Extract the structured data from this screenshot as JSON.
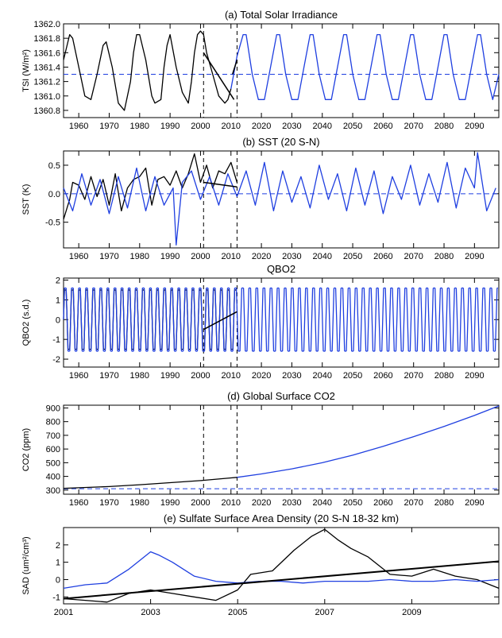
{
  "figure": {
    "panels": [
      "tsi",
      "sst",
      "qbo",
      "co2",
      "sad"
    ]
  },
  "chart_data": [
    {
      "id": "tsi",
      "type": "line",
      "title": "(a) Total Solar Irradiance",
      "ylabel": "TSI (W/m²)",
      "xlim": [
        1955,
        2098
      ],
      "ylim": [
        1360.7,
        1362.0
      ],
      "yticks": [
        1360.8,
        1361.0,
        1361.2,
        1361.4,
        1361.6,
        1361.8,
        1362.0
      ],
      "ytick_labels": [
        "1360.8",
        "1361.0",
        "1361.2",
        "1361.4",
        "1361.6",
        "1361.8",
        "1362.0"
      ],
      "xticks": [
        1960,
        1970,
        1980,
        1990,
        2000,
        2010,
        2020,
        2030,
        2040,
        2050,
        2060,
        2070,
        2080,
        2090
      ],
      "xtick_labels": [
        "1960",
        "1970",
        "1980",
        "1990",
        "2000",
        "2010",
        "2020",
        "2030",
        "2040",
        "2050",
        "2060",
        "2070",
        "2080",
        "2090"
      ],
      "vlines": [
        2001,
        2012
      ],
      "hline": 1361.3,
      "series": [
        {
          "color": "#000000",
          "x": [
            1955,
            1957,
            1958,
            1960,
            1962,
            1964,
            1966,
            1968,
            1969,
            1971,
            1973,
            1975,
            1977,
            1978,
            1979,
            1980,
            1982,
            1984,
            1985,
            1987,
            1988,
            1989,
            1990,
            1992,
            1994,
            1996,
            1997,
            1998,
            1999,
            2000,
            2001,
            2002,
            2004,
            2006,
            2008,
            2009,
            2010
          ],
          "y": [
            1361.5,
            1361.85,
            1361.8,
            1361.4,
            1361.0,
            1360.95,
            1361.3,
            1361.7,
            1361.75,
            1361.4,
            1360.9,
            1360.8,
            1361.2,
            1361.6,
            1361.85,
            1361.85,
            1361.5,
            1361.0,
            1360.9,
            1360.95,
            1361.4,
            1361.7,
            1361.85,
            1361.4,
            1361.05,
            1360.9,
            1361.2,
            1361.6,
            1361.85,
            1361.9,
            1361.85,
            1361.6,
            1361.3,
            1361.0,
            1360.9,
            1360.95,
            1361.1
          ]
        },
        {
          "color": "#1f3fe0",
          "x": [
            2010,
            2012,
            2014,
            2015,
            2017,
            2019,
            2021,
            2023,
            2025,
            2026,
            2028,
            2030,
            2032,
            2034,
            2036,
            2037,
            2039,
            2041,
            2043,
            2045,
            2047,
            2048,
            2050,
            2052,
            2054,
            2056,
            2058,
            2059,
            2061,
            2063,
            2065,
            2067,
            2069,
            2070,
            2072,
            2074,
            2076,
            2078,
            2080,
            2081,
            2083,
            2085,
            2087,
            2089,
            2091,
            2092,
            2094,
            2096,
            2098
          ],
          "y": [
            1361.1,
            1361.55,
            1361.85,
            1361.85,
            1361.3,
            1360.95,
            1360.95,
            1361.4,
            1361.85,
            1361.85,
            1361.3,
            1360.95,
            1360.95,
            1361.4,
            1361.85,
            1361.85,
            1361.3,
            1360.95,
            1360.95,
            1361.4,
            1361.85,
            1361.85,
            1361.3,
            1360.95,
            1360.95,
            1361.4,
            1361.85,
            1361.85,
            1361.3,
            1360.95,
            1360.95,
            1361.4,
            1361.85,
            1361.85,
            1361.3,
            1360.95,
            1360.95,
            1361.4,
            1361.85,
            1361.85,
            1361.3,
            1360.95,
            1360.95,
            1361.4,
            1361.85,
            1361.85,
            1361.3,
            1360.95,
            1361.3
          ]
        }
      ],
      "trend": {
        "x": [
          2001,
          2011
        ],
        "y": [
          1361.6,
          1360.95
        ]
      },
      "trend2": {
        "x": [
          2010.5,
          2012
        ],
        "y": [
          1361.3,
          1361.5
        ]
      }
    },
    {
      "id": "sst",
      "type": "line",
      "title": "(b)  SST (20 S-N)",
      "ylabel": "SST (K)",
      "xlim": [
        1955,
        2098
      ],
      "ylim": [
        -0.95,
        0.75
      ],
      "yticks": [
        -0.5,
        0.0,
        0.5
      ],
      "ytick_labels": [
        "-0.5",
        "0.0",
        "0.5"
      ],
      "xticks": [
        1960,
        1970,
        1980,
        1990,
        2000,
        2010,
        2020,
        2030,
        2040,
        2050,
        2060,
        2070,
        2080,
        2090
      ],
      "xtick_labels": [
        "1960",
        "1970",
        "1980",
        "1990",
        "2000",
        "2010",
        "2020",
        "2030",
        "2040",
        "2050",
        "2060",
        "2070",
        "2080",
        "2090"
      ],
      "vlines": [
        2001,
        2012
      ],
      "hline": 0.0,
      "series": [
        {
          "color": "#000000",
          "x": [
            1955,
            1957,
            1958,
            1960,
            1962,
            1964,
            1966,
            1968,
            1970,
            1972,
            1974,
            1976,
            1978,
            1980,
            1982,
            1984,
            1986,
            1988,
            1990,
            1992,
            1994,
            1996,
            1998,
            2000,
            2002,
            2004,
            2006,
            2008,
            2010,
            2012
          ],
          "y": [
            -0.45,
            -0.1,
            0.2,
            0.15,
            -0.1,
            0.3,
            -0.05,
            0.25,
            -0.2,
            0.35,
            -0.3,
            0.1,
            0.25,
            0.3,
            0.45,
            -0.2,
            0.25,
            0.3,
            0.15,
            0.4,
            0.1,
            0.35,
            0.7,
            0.2,
            0.5,
            0.1,
            0.4,
            0.35,
            0.55,
            0.2
          ]
        },
        {
          "color": "#1f3fe0",
          "x": [
            1955,
            1958,
            1961,
            1964,
            1967,
            1970,
            1973,
            1976,
            1979,
            1982,
            1985,
            1988,
            1991,
            1992,
            1994,
            1997,
            2000,
            2003,
            2006,
            2009,
            2012,
            2015,
            2018,
            2021,
            2024,
            2027,
            2030,
            2033,
            2036,
            2039,
            2042,
            2045,
            2048,
            2051,
            2054,
            2057,
            2060,
            2063,
            2066,
            2069,
            2072,
            2075,
            2078,
            2081,
            2084,
            2087,
            2090,
            2091,
            2094,
            2097
          ],
          "y": [
            0.1,
            -0.3,
            0.35,
            -0.2,
            0.25,
            -0.35,
            0.3,
            -0.25,
            0.45,
            -0.3,
            0.3,
            -0.2,
            0.1,
            -0.9,
            0.2,
            0.4,
            -0.1,
            0.3,
            -0.2,
            0.35,
            -0.05,
            0.4,
            -0.2,
            0.55,
            -0.3,
            0.4,
            -0.15,
            0.3,
            -0.25,
            0.5,
            -0.1,
            0.35,
            -0.3,
            0.45,
            -0.2,
            0.4,
            -0.35,
            0.3,
            -0.1,
            0.5,
            -0.2,
            0.35,
            -0.15,
            0.55,
            -0.25,
            0.45,
            0.1,
            0.72,
            -0.3,
            0.1
          ]
        }
      ],
      "trend": {
        "x": [
          2001,
          2012
        ],
        "y": [
          0.2,
          0.12
        ]
      }
    },
    {
      "id": "qbo",
      "type": "line",
      "title": "QBO2",
      "ylabel": "QBO2 (s.d.)",
      "xlim": [
        1955,
        2098
      ],
      "ylim": [
        -2.4,
        2.1
      ],
      "yticks": [
        -2,
        -1,
        0,
        1,
        2
      ],
      "ytick_labels": [
        "-2",
        "-1",
        "0",
        "1",
        "2"
      ],
      "xticks": [
        1960,
        1970,
        1980,
        1990,
        2000,
        2010,
        2020,
        2030,
        2040,
        2050,
        2060,
        2070,
        2080,
        2090
      ],
      "xtick_labels": [
        "1960",
        "1970",
        "1980",
        "1990",
        "2000",
        "2010",
        "2020",
        "2030",
        "2040",
        "2050",
        "2060",
        "2070",
        "2080",
        "2090"
      ],
      "vlines": [
        2001,
        2012
      ],
      "period_years": 2.33,
      "series": [
        {
          "color": "#000000",
          "x_start": 1955,
          "x_end": 2012,
          "amplitude": 1.5
        },
        {
          "color": "#1f3fe0",
          "x_start": 1955,
          "x_end": 2098,
          "amplitude": 1.6
        }
      ],
      "trend": {
        "x": [
          2001,
          2012
        ],
        "y": [
          -0.5,
          0.4
        ]
      }
    },
    {
      "id": "co2",
      "type": "line",
      "title": "(d)  Global Surface CO2",
      "ylabel": "CO2 (ppm)",
      "xlim": [
        1955,
        2098
      ],
      "ylim": [
        270,
        920
      ],
      "yticks": [
        300,
        400,
        500,
        600,
        700,
        800,
        900
      ],
      "ytick_labels": [
        "300",
        "400",
        "500",
        "600",
        "700",
        "800",
        "900"
      ],
      "xticks": [
        1960,
        1970,
        1980,
        1990,
        2000,
        2010,
        2020,
        2030,
        2040,
        2050,
        2060,
        2070,
        2080,
        2090
      ],
      "xtick_labels": [
        "1960",
        "1970",
        "1980",
        "1990",
        "2000",
        "2010",
        "2020",
        "2030",
        "2040",
        "2050",
        "2060",
        "2070",
        "2080",
        "2090"
      ],
      "vlines": [
        2001,
        2012
      ],
      "hline": 310,
      "series": [
        {
          "color": "#000000",
          "x": [
            1955,
            1960,
            1970,
            1980,
            1990,
            2000,
            2010,
            2012
          ],
          "y": [
            313,
            317,
            326,
            339,
            354,
            369,
            389,
            393
          ]
        },
        {
          "color": "#1f3fe0",
          "x": [
            2012,
            2020,
            2030,
            2040,
            2050,
            2060,
            2070,
            2080,
            2090,
            2098
          ],
          "y": [
            393,
            418,
            455,
            500,
            555,
            620,
            690,
            765,
            845,
            915
          ]
        }
      ]
    },
    {
      "id": "sad",
      "type": "line",
      "title": "(e)  Sulfate Surface Area Density (20 S-N 18-32 km)",
      "ylabel": "SAD (um²/cm³)",
      "xlim": [
        2001,
        2011
      ],
      "ylim": [
        -1.4,
        3.0
      ],
      "yticks": [
        -1,
        0,
        1,
        2
      ],
      "ytick_labels": [
        "-1",
        "0",
        "1",
        "2"
      ],
      "xticks": [
        2001,
        2003,
        2005,
        2007,
        2009
      ],
      "xtick_labels": [
        "2001",
        "2003",
        "2005",
        "2007",
        "2009"
      ],
      "series": [
        {
          "color": "#000000",
          "x": [
            2001,
            2001.5,
            2002,
            2002.5,
            2003,
            2003.5,
            2004,
            2004.5,
            2005,
            2005.3,
            2005.8,
            2006.3,
            2006.7,
            2007,
            2007.3,
            2007.6,
            2008,
            2008.5,
            2009,
            2009.5,
            2010,
            2010.5,
            2011
          ],
          "y": [
            -1.1,
            -1.2,
            -1.3,
            -0.8,
            -0.6,
            -0.8,
            -1.0,
            -1.2,
            -0.6,
            0.3,
            0.5,
            1.7,
            2.5,
            2.9,
            2.3,
            1.8,
            1.3,
            0.3,
            0.2,
            0.6,
            0.2,
            0.0,
            -0.5
          ]
        },
        {
          "color": "#1f3fe0",
          "x": [
            2001,
            2001.5,
            2002,
            2002.5,
            2003,
            2003.2,
            2003.5,
            2004,
            2004.5,
            2005,
            2005.5,
            2006,
            2006.5,
            2007,
            2007.5,
            2008,
            2008.5,
            2009,
            2009.5,
            2010,
            2010.5,
            2011
          ],
          "y": [
            -0.5,
            -0.3,
            -0.2,
            0.6,
            1.6,
            1.4,
            1.0,
            0.2,
            -0.1,
            -0.2,
            -0.1,
            -0.1,
            -0.2,
            -0.1,
            -0.1,
            -0.1,
            0.0,
            -0.1,
            -0.1,
            0.0,
            -0.1,
            0.0
          ]
        }
      ],
      "trend": {
        "x": [
          2001,
          2011
        ],
        "y": [
          -1.1,
          1.05
        ]
      }
    }
  ]
}
